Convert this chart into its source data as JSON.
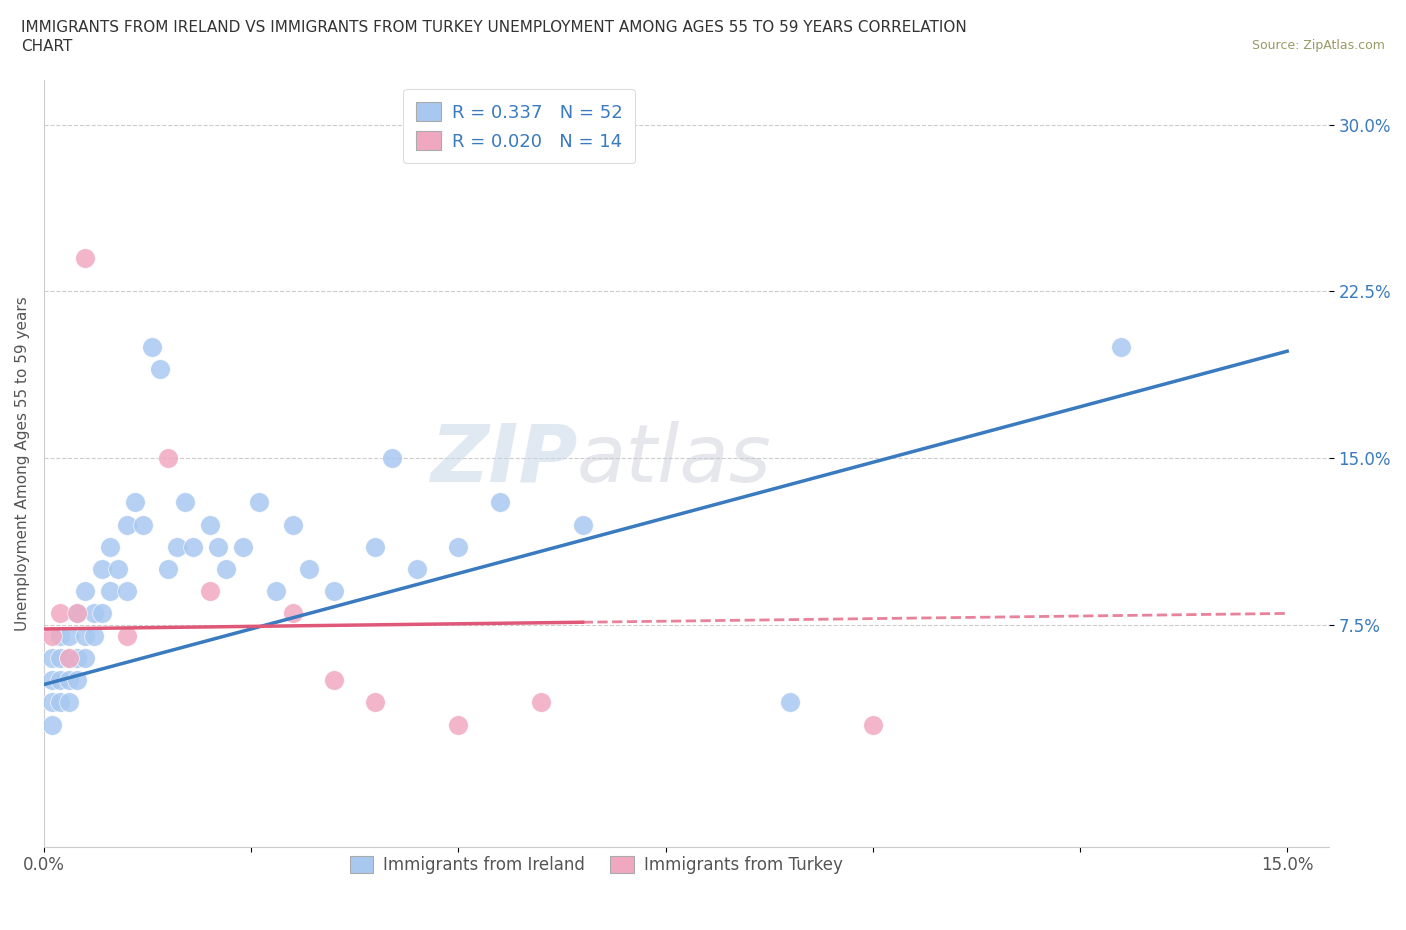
{
  "title_line1": "IMMIGRANTS FROM IRELAND VS IMMIGRANTS FROM TURKEY UNEMPLOYMENT AMONG AGES 55 TO 59 YEARS CORRELATION",
  "title_line2": "CHART",
  "source": "Source: ZipAtlas.com",
  "ylabel": "Unemployment Among Ages 55 to 59 years",
  "xlim": [
    0.0,
    0.155
  ],
  "ylim": [
    -0.025,
    0.32
  ],
  "ytick_positions": [
    0.075,
    0.15,
    0.225,
    0.3
  ],
  "ytick_labels": [
    "7.5%",
    "15.0%",
    "22.5%",
    "30.0%"
  ],
  "watermark_zip": "ZIP",
  "watermark_atlas": "atlas",
  "ireland_color": "#a8c8f0",
  "turkey_color": "#f0a8c0",
  "trend_ireland_color": "#3a7abf",
  "trend_turkey_color": "#e05878",
  "R_ireland": 0.337,
  "N_ireland": 52,
  "R_turkey": 0.02,
  "N_turkey": 14,
  "ireland_x": [
    0.001,
    0.001,
    0.001,
    0.001,
    0.002,
    0.002,
    0.002,
    0.002,
    0.003,
    0.003,
    0.003,
    0.003,
    0.004,
    0.004,
    0.004,
    0.005,
    0.005,
    0.005,
    0.006,
    0.006,
    0.007,
    0.007,
    0.008,
    0.008,
    0.009,
    0.01,
    0.01,
    0.011,
    0.012,
    0.013,
    0.014,
    0.015,
    0.016,
    0.017,
    0.018,
    0.02,
    0.021,
    0.022,
    0.024,
    0.026,
    0.028,
    0.03,
    0.032,
    0.035,
    0.04,
    0.042,
    0.045,
    0.05,
    0.055,
    0.065,
    0.09,
    0.13
  ],
  "ireland_y": [
    0.04,
    0.05,
    0.06,
    0.03,
    0.05,
    0.06,
    0.04,
    0.07,
    0.07,
    0.05,
    0.06,
    0.04,
    0.08,
    0.06,
    0.05,
    0.09,
    0.07,
    0.06,
    0.08,
    0.07,
    0.1,
    0.08,
    0.09,
    0.11,
    0.1,
    0.12,
    0.09,
    0.13,
    0.12,
    0.2,
    0.19,
    0.1,
    0.11,
    0.13,
    0.11,
    0.12,
    0.11,
    0.1,
    0.11,
    0.13,
    0.09,
    0.12,
    0.1,
    0.09,
    0.11,
    0.15,
    0.1,
    0.11,
    0.13,
    0.12,
    0.04,
    0.2
  ],
  "turkey_x": [
    0.001,
    0.002,
    0.003,
    0.004,
    0.005,
    0.01,
    0.015,
    0.02,
    0.03,
    0.035,
    0.04,
    0.05,
    0.06,
    0.1
  ],
  "turkey_y": [
    0.07,
    0.08,
    0.06,
    0.08,
    0.24,
    0.07,
    0.15,
    0.09,
    0.08,
    0.05,
    0.04,
    0.03,
    0.04,
    0.03
  ],
  "trend_ireland_x0": 0.0,
  "trend_ireland_x1": 0.15,
  "trend_ireland_y0": 0.048,
  "trend_ireland_y1": 0.198,
  "trend_turkey_x0": 0.0,
  "trend_turkey_x1": 0.15,
  "trend_turkey_y0": 0.073,
  "trend_turkey_y1": 0.08,
  "trend_turkey_solid_end": 0.065
}
